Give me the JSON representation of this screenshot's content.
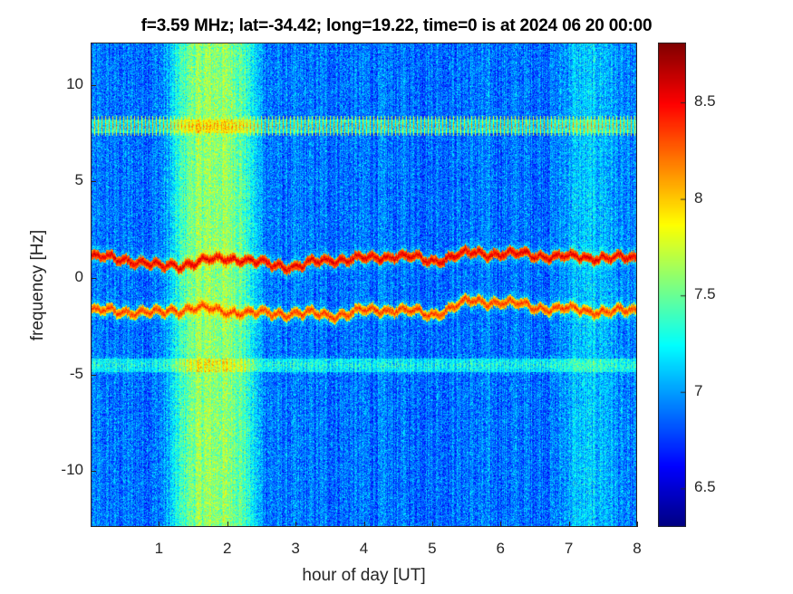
{
  "chart_data": {
    "type": "heatmap",
    "title": "f=3.59 MHz;  lat=-34.42; long=19.22, time=0 is at 2024 06 20 00:00",
    "xlabel": "hour of day [UT]",
    "ylabel": "frequency [Hz]",
    "xlim": [
      0,
      8
    ],
    "ylim": [
      -12.9,
      12.2
    ],
    "xticks": [
      "1",
      "2",
      "3",
      "4",
      "5",
      "6",
      "7",
      "8"
    ],
    "yticks": [
      "10",
      "5",
      "0",
      "-5",
      "-10"
    ],
    "ytick_values": [
      10,
      5,
      0,
      -5,
      -10
    ],
    "colorbar": {
      "range": [
        6.3,
        8.81
      ],
      "ticks": [
        "8.5",
        "8",
        "7.5",
        "7",
        "6.5"
      ],
      "tick_values": [
        8.5,
        8,
        7.5,
        7,
        6.5
      ],
      "colormap": "jet"
    },
    "background_level": 6.9,
    "enhanced_interval": {
      "hours": [
        1.2,
        2.4
      ],
      "level": 7.6
    },
    "series": [
      {
        "name": "upper trace",
        "hours": [
          0,
          0.5,
          1,
          1.5,
          2,
          2.5,
          3,
          3.5,
          4,
          4.5,
          5,
          5.5,
          6,
          6.5,
          7,
          7.5,
          8
        ],
        "freq": [
          1.1,
          1.0,
          0.6,
          0.8,
          1.1,
          0.8,
          0.6,
          1.0,
          1.0,
          1.2,
          0.9,
          1.3,
          1.3,
          1.2,
          1.1,
          1.1,
          1.0
        ],
        "level": 8.6
      },
      {
        "name": "lower trace",
        "hours": [
          0,
          0.5,
          1,
          1.5,
          2,
          2.5,
          3,
          3.5,
          4,
          4.5,
          5,
          5.5,
          6,
          6.5,
          7,
          7.5,
          8
        ],
        "freq": [
          -1.7,
          -1.7,
          -1.8,
          -1.5,
          -1.7,
          -1.8,
          -1.8,
          -1.9,
          -1.7,
          -1.6,
          -1.9,
          -1.2,
          -1.2,
          -1.5,
          -1.6,
          -1.7,
          -1.7
        ],
        "level": 8.4
      }
    ],
    "interference_bands": [
      {
        "freq": 7.9,
        "level": 8.2
      },
      {
        "freq": -4.5,
        "level": 7.5
      }
    ]
  }
}
